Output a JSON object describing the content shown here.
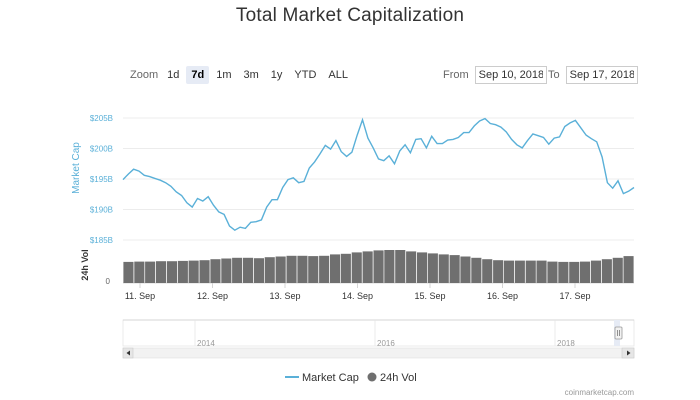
{
  "title": "Total Market Capitalization",
  "zoom": {
    "label": "Zoom",
    "buttons": [
      "1d",
      "7d",
      "1m",
      "3m",
      "1y",
      "YTD",
      "ALL"
    ],
    "active": "7d"
  },
  "range": {
    "from_label": "From",
    "from_value": "Sep 10, 2018",
    "to_label": "To",
    "to_value": "Sep 17, 2018"
  },
  "chart_data": {
    "type": "line",
    "title": "Total Market Capitalization",
    "series": [
      {
        "name": "Market Cap",
        "color": "#5ab0d8",
        "y_axis": "Market Cap",
        "unit": "$B",
        "values": [
          194.9,
          195.8,
          196.6,
          196.3,
          195.6,
          195.4,
          195.1,
          194.8,
          194.4,
          193.8,
          192.9,
          192.3,
          191.1,
          190.4,
          191.8,
          191.4,
          192.1,
          190.7,
          189.6,
          189.2,
          187.3,
          186.6,
          187.1,
          186.9,
          187.9,
          188.0,
          188.3,
          190.4,
          191.6,
          191.6,
          193.6,
          194.9,
          195.2,
          194.4,
          194.6,
          196.8,
          197.8,
          199.1,
          200.5,
          199.9,
          201.3,
          199.5,
          198.7,
          199.4,
          202.2,
          204.7,
          201.7,
          200.1,
          198.3,
          198.0,
          198.8,
          197.5,
          199.6,
          200.6,
          199.3,
          201.5,
          201.6,
          200.1,
          202.0,
          200.8,
          200.8,
          201.4,
          201.5,
          201.8,
          202.6,
          202.6,
          203.7,
          204.5,
          204.9,
          204.1,
          203.9,
          203.5,
          202.7,
          201.5,
          200.6,
          200.1,
          201.3,
          202.4,
          202.1,
          201.8,
          200.7,
          201.7,
          201.9,
          203.6,
          204.2,
          204.6,
          203.4,
          202.2,
          201.6,
          201.1,
          198.6,
          194.4,
          193.5,
          194.7,
          192.6,
          193.0,
          193.6
        ]
      },
      {
        "name": "24h Vol",
        "color": "#6f6f6f",
        "type": "column",
        "y_axis": "24h Vol",
        "values": [
          0.62,
          0.63,
          0.63,
          0.64,
          0.64,
          0.65,
          0.66,
          0.67,
          0.7,
          0.72,
          0.74,
          0.74,
          0.73,
          0.76,
          0.78,
          0.8,
          0.8,
          0.79,
          0.8,
          0.84,
          0.86,
          0.9,
          0.93,
          0.96,
          0.97,
          0.97,
          0.93,
          0.9,
          0.87,
          0.84,
          0.82,
          0.78,
          0.74,
          0.7,
          0.67,
          0.66,
          0.66,
          0.66,
          0.66,
          0.63,
          0.62,
          0.62,
          0.63,
          0.66,
          0.7,
          0.74,
          0.79
        ]
      }
    ],
    "x_ticks": [
      "11. Sep",
      "12. Sep",
      "13. Sep",
      "14. Sep",
      "15. Sep",
      "16. Sep",
      "17. Sep"
    ],
    "y_axis": {
      "label": "Market Cap",
      "ticks": [
        "$185B",
        "$190B",
        "$195B",
        "$200B",
        "$205B"
      ],
      "tick_values": [
        185,
        190,
        195,
        200,
        205
      ],
      "range": [
        185,
        205
      ]
    },
    "y2_axis": {
      "label": "24h Vol",
      "ticks": [
        "0"
      ]
    },
    "navigator": {
      "labels": [
        "2014",
        "2016",
        "2018"
      ]
    },
    "legend": [
      {
        "name": "Market Cap",
        "color": "#5ab0d8",
        "symbol": "line"
      },
      {
        "name": "24h Vol",
        "color": "#6f6f6f",
        "symbol": "circle"
      }
    ],
    "legend_position": "bottom",
    "grid": true
  },
  "credit": "coinmarketcap.com"
}
